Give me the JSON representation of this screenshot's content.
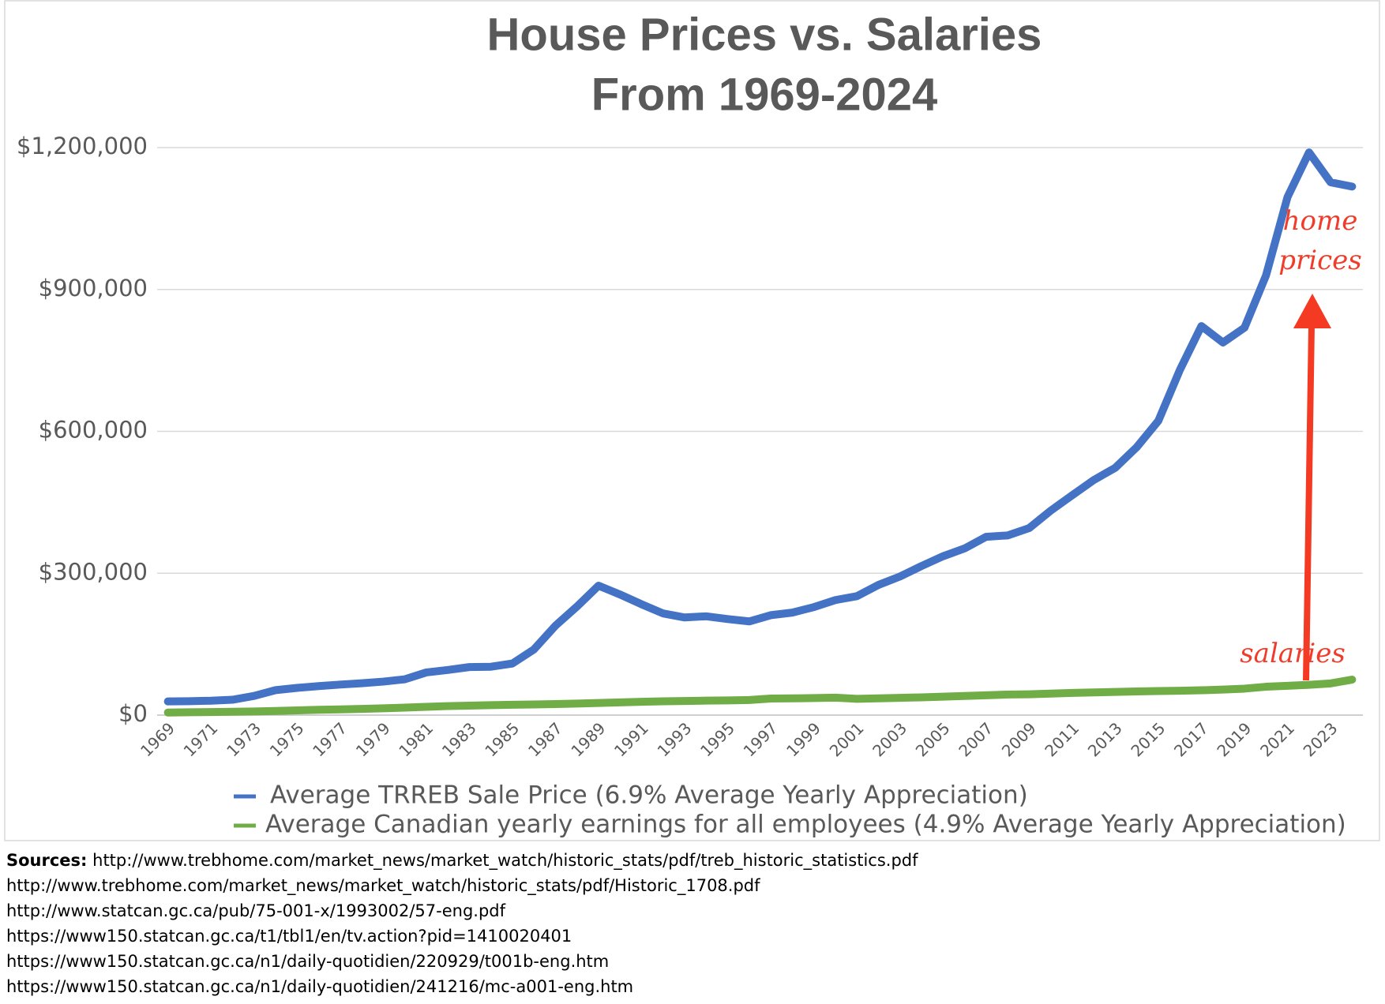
{
  "chart_data": {
    "type": "line",
    "title": [
      "House Prices vs. Salaries",
      "From 1969-2024"
    ],
    "categories": [
      "1969",
      null,
      "1971",
      null,
      "1973",
      null,
      "1975",
      null,
      "1977",
      null,
      "1979",
      null,
      "1981",
      null,
      "1983",
      null,
      "1985",
      null,
      "1987",
      null,
      "1989",
      null,
      "1991",
      null,
      "1993",
      null,
      "1995",
      null,
      "1997",
      null,
      "1999",
      null,
      "2001",
      null,
      "2003",
      null,
      "2005",
      null,
      "2007",
      null,
      "2009",
      null,
      "2011",
      null,
      "2013",
      null,
      "2015",
      null,
      "2017",
      null,
      "2019",
      null,
      "2021",
      null,
      "2023",
      null
    ],
    "series": [
      {
        "name": "Average TRREB Sale Price (6.9% Average Yearly Appreciation)",
        "color": "#4472c4",
        "values": [
          28929,
          29492,
          30426,
          32513,
          40605,
          52806,
          57581,
          61389,
          64559,
          67333,
          70830,
          75694,
          90203,
          95496,
          101626,
          102318,
          109094,
          138925,
          189105,
          229635,
          273698,
          255020,
          234313,
          214971,
          206490,
          208921,
          203028,
          198150,
          211307,
          216795,
          228372,
          243255,
          251508,
          275231,
          293067,
          315231,
          335907,
          352388,
          377029,
          379943,
          395460,
          432264,
          465014,
          497073,
          522958,
          566726,
          622217,
          729824,
          822681,
          787842,
          819153,
          929636,
          1095475,
          1189850,
          1126604,
          1117600
        ]
      },
      {
        "name": "Average Canadian yearly earnings for all employees (4.9% Average Yearly Appreciation)",
        "color": "#70ad47",
        "values": [
          5500,
          6000,
          6500,
          7100,
          7700,
          8800,
          10000,
          11200,
          12200,
          13100,
          14300,
          15800,
          17600,
          19100,
          20100,
          21000,
          21900,
          22500,
          23400,
          24500,
          25700,
          27000,
          28200,
          29200,
          29800,
          30700,
          31100,
          31900,
          35000,
          35500,
          36000,
          37000,
          34500,
          35500,
          36500,
          37500,
          39000,
          40500,
          42000,
          43500,
          44000,
          45500,
          47000,
          48000,
          49000,
          50000,
          51000,
          51500,
          52500,
          54000,
          56000,
          60000,
          62000,
          64000,
          67000,
          75000
        ]
      }
    ],
    "ylim": [
      0,
      1200000
    ],
    "yticks": [
      {
        "value": 0,
        "label": "$0"
      },
      {
        "value": 300000,
        "label": "$300,000"
      },
      {
        "value": 600000,
        "label": "$600,000"
      },
      {
        "value": 900000,
        "label": "$900,000"
      },
      {
        "value": 1200000,
        "label": "$1,200,000"
      }
    ],
    "grid": true,
    "legend": "bottom",
    "annotations": [
      "home",
      "prices",
      "salaries"
    ],
    "annotation_color": "#f03c2a"
  },
  "sources": {
    "label": "Sources:",
    "links": [
      "http://www.trebhome.com/market_news/market_watch/historic_stats/pdf/treb_historic_statistics.pdf",
      "http://www.trebhome.com/market_news/market_watch/historic_stats/pdf/Historic_1708.pdf",
      "http://www.statcan.gc.ca/pub/75-001-x/1993002/57-eng.pdf",
      "https://www150.statcan.gc.ca/t1/tbl1/en/tv.action?pid=1410020401",
      "https://www150.statcan.gc.ca/n1/daily-quotidien/220929/t001b-eng.htm",
      "https://www150.statcan.gc.ca/n1/daily-quotidien/241216/mc-a001-eng.htm"
    ]
  }
}
